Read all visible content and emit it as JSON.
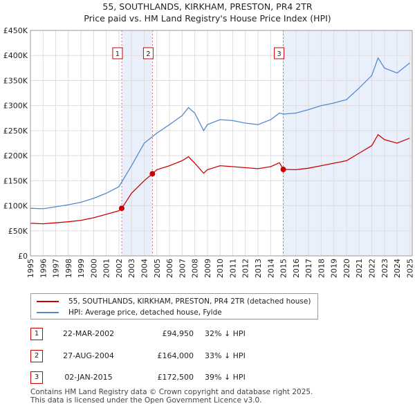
{
  "title_line1": "55, SOUTHLANDS, KIRKHAM, PRESTON, PR4 2TR",
  "title_line2": "Price paid vs. HM Land Registry's House Price Index (HPI)",
  "colors": {
    "property": "#cc0000",
    "hpi": "#5588cc",
    "shade": "#eaf0fb",
    "marker_border": "#cc0000"
  },
  "legend": {
    "property_label": "55, SOUTHLANDS, KIRKHAM, PRESTON, PR4 2TR (detached house)",
    "hpi_label": "HPI: Average price, detached house, Fylde"
  },
  "sales": [
    {
      "num": "1",
      "date": "22-MAR-2002",
      "price": "£94,950",
      "hpi_diff": "32% ↓ HPI"
    },
    {
      "num": "2",
      "date": "27-AUG-2004",
      "price": "£164,000",
      "hpi_diff": "33% ↓ HPI"
    },
    {
      "num": "3",
      "date": "02-JAN-2015",
      "price": "£172,500",
      "hpi_diff": "39% ↓ HPI"
    }
  ],
  "footer": {
    "line1": "Contains HM Land Registry data © Crown copyright and database right 2025.",
    "line2": "This data is licensed under the Open Government Licence v3.0."
  },
  "chart_data": {
    "type": "line",
    "x_range": [
      1995,
      2025.2
    ],
    "y_range": [
      0,
      450000
    ],
    "y_ticks": [
      {
        "value": 0,
        "label": "£0"
      },
      {
        "value": 50000,
        "label": "£50K"
      },
      {
        "value": 100000,
        "label": "£100K"
      },
      {
        "value": 150000,
        "label": "£150K"
      },
      {
        "value": 200000,
        "label": "£200K"
      },
      {
        "value": 250000,
        "label": "£250K"
      },
      {
        "value": 300000,
        "label": "£300K"
      },
      {
        "value": 350000,
        "label": "£350K"
      },
      {
        "value": 400000,
        "label": "£400K"
      },
      {
        "value": 450000,
        "label": "£450K"
      }
    ],
    "x_ticks": [
      "1995",
      "1996",
      "1997",
      "1998",
      "1999",
      "2000",
      "2001",
      "2002",
      "2003",
      "2004",
      "2005",
      "2006",
      "2007",
      "2008",
      "2009",
      "2010",
      "2011",
      "2012",
      "2013",
      "2014",
      "2015",
      "2016",
      "2017",
      "2018",
      "2019",
      "2020",
      "2021",
      "2022",
      "2023",
      "2024",
      "2025"
    ],
    "sale_markers": [
      {
        "label": "1",
        "x": 2002.22,
        "y": 94950
      },
      {
        "label": "2",
        "x": 2004.65,
        "y": 164000
      },
      {
        "label": "3",
        "x": 2015.0,
        "y": 172500
      }
    ],
    "series": [
      {
        "name": "55, SOUTHLANDS, KIRKHAM, PRESTON, PR4 2TR (detached house)",
        "points": [
          [
            1995,
            65000
          ],
          [
            1996,
            64000
          ],
          [
            1997,
            66000
          ],
          [
            1998,
            68000
          ],
          [
            1999,
            71000
          ],
          [
            2000,
            76000
          ],
          [
            2001,
            83000
          ],
          [
            2002,
            90000
          ],
          [
            2002.22,
            94950
          ],
          [
            2003,
            125000
          ],
          [
            2004,
            150000
          ],
          [
            2004.65,
            164000
          ],
          [
            2005,
            172000
          ],
          [
            2006,
            180000
          ],
          [
            2007,
            190000
          ],
          [
            2007.5,
            198000
          ],
          [
            2008,
            185000
          ],
          [
            2008.7,
            165000
          ],
          [
            2009,
            172000
          ],
          [
            2010,
            180000
          ],
          [
            2011,
            178000
          ],
          [
            2012,
            176000
          ],
          [
            2013,
            174000
          ],
          [
            2014,
            178000
          ],
          [
            2014.7,
            186000
          ],
          [
            2015,
            172500
          ],
          [
            2016,
            172000
          ],
          [
            2017,
            175000
          ],
          [
            2018,
            180000
          ],
          [
            2019,
            185000
          ],
          [
            2020,
            190000
          ],
          [
            2021,
            205000
          ],
          [
            2022,
            220000
          ],
          [
            2022.5,
            242000
          ],
          [
            2023,
            232000
          ],
          [
            2024,
            225000
          ],
          [
            2025,
            235000
          ]
        ]
      },
      {
        "name": "HPI: Average price, detached house, Fylde",
        "points": [
          [
            1995,
            95000
          ],
          [
            1996,
            94000
          ],
          [
            1997,
            98000
          ],
          [
            1998,
            102000
          ],
          [
            1999,
            107000
          ],
          [
            2000,
            115000
          ],
          [
            2001,
            125000
          ],
          [
            2002,
            138000
          ],
          [
            2003,
            180000
          ],
          [
            2004,
            225000
          ],
          [
            2005,
            245000
          ],
          [
            2006,
            262000
          ],
          [
            2007,
            280000
          ],
          [
            2007.5,
            296000
          ],
          [
            2008,
            285000
          ],
          [
            2008.7,
            250000
          ],
          [
            2009,
            262000
          ],
          [
            2010,
            272000
          ],
          [
            2011,
            270000
          ],
          [
            2012,
            265000
          ],
          [
            2013,
            262000
          ],
          [
            2014,
            272000
          ],
          [
            2014.7,
            285000
          ],
          [
            2015,
            283000
          ],
          [
            2016,
            285000
          ],
          [
            2017,
            292000
          ],
          [
            2018,
            300000
          ],
          [
            2019,
            305000
          ],
          [
            2020,
            312000
          ],
          [
            2021,
            335000
          ],
          [
            2022,
            360000
          ],
          [
            2022.5,
            395000
          ],
          [
            2023,
            375000
          ],
          [
            2024,
            365000
          ],
          [
            2025,
            385000
          ]
        ]
      }
    ]
  }
}
